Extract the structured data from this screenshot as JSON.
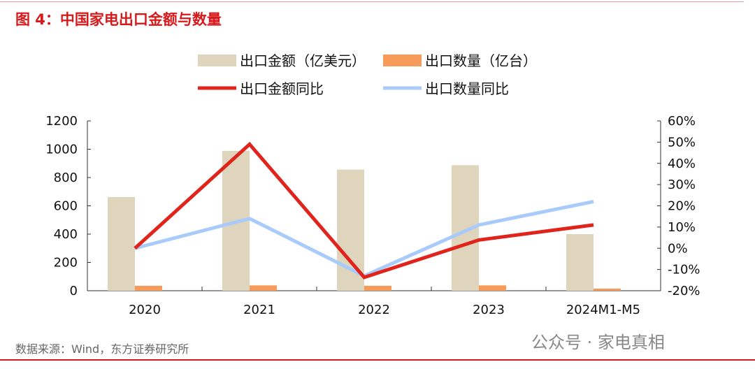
{
  "title": "图 4：中国家电出口金额与数量",
  "source": "数据来源：Wind，东方证券研究所",
  "watermark": "公众号 · 家电真相",
  "chart_data": {
    "type": "bar+line",
    "categories": [
      "2020",
      "2021",
      "2022",
      "2023",
      "2024M1-M5"
    ],
    "series": [
      {
        "name": "出口金额（亿美元）",
        "type": "bar",
        "axis": "left",
        "color": "#dfd5bd",
        "values": [
          662,
          988,
          856,
          887,
          400
        ]
      },
      {
        "name": "出口数量（亿台）",
        "type": "bar",
        "axis": "left",
        "color": "#f79b5a",
        "values": [
          35,
          38,
          35,
          38,
          15
        ]
      },
      {
        "name": "出口金额同比",
        "type": "line",
        "axis": "right",
        "color": "#e0231b",
        "values": [
          0,
          49,
          -13.7,
          3.9,
          11
        ]
      },
      {
        "name": "出口数量同比",
        "type": "line",
        "axis": "right",
        "color": "#a9cbfb",
        "values": [
          0,
          14,
          -13,
          11,
          22
        ]
      }
    ],
    "left_axis": {
      "min": 0,
      "max": 1200,
      "ticks": [
        "0",
        "200",
        "400",
        "600",
        "800",
        "1000",
        "1200"
      ]
    },
    "right_axis": {
      "min": -20,
      "max": 60,
      "ticks": [
        "-20%",
        "-10%",
        "0%",
        "10%",
        "20%",
        "30%",
        "40%",
        "50%",
        "60%"
      ]
    }
  }
}
